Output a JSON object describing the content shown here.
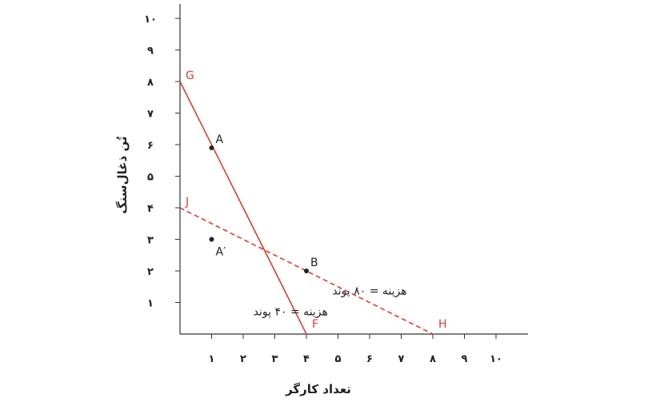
{
  "chart_data": {
    "type": "line",
    "xlabel": "تعداد کارگر",
    "ylabel": "تُن ذغال‌سنگ",
    "xlim": [
      0,
      10.8
    ],
    "ylim": [
      0,
      10.5
    ],
    "x_ticks": [
      1,
      2,
      3,
      4,
      5,
      6,
      7,
      8,
      9,
      10
    ],
    "x_tick_labels": [
      "۱",
      "۲",
      "۳",
      "۴",
      "۵",
      "۶",
      "۷",
      "۸",
      "۹",
      "۱۰"
    ],
    "y_ticks": [
      1,
      2,
      3,
      4,
      5,
      6,
      7,
      8,
      9,
      10
    ],
    "y_tick_labels": [
      "۱",
      "۲",
      "۳",
      "۴",
      "۵",
      "۶",
      "۷",
      "۸",
      "۹",
      "۱۰"
    ],
    "grid": false,
    "series": [
      {
        "style": "solid",
        "color": "#e03c31",
        "points": [
          [
            0,
            8
          ],
          [
            4,
            0
          ]
        ],
        "start_label": "G",
        "end_label": "F"
      },
      {
        "style": "dashed",
        "color": "#e03c31",
        "points": [
          [
            0,
            4
          ],
          [
            8,
            0
          ]
        ],
        "start_label": "J",
        "end_label": "H"
      }
    ],
    "points": [
      {
        "label": "A",
        "x": 1,
        "y": 5.9
      },
      {
        "label": "A′",
        "x": 1,
        "y": 3
      },
      {
        "label": "B",
        "x": 4,
        "y": 2
      }
    ],
    "annotations": [
      {
        "text": "هزینه = ۸۰ پوند",
        "x": 6.0,
        "y": 1.25
      },
      {
        "text": "هزینه = ۴۰ پوند",
        "x": 3.5,
        "y": 0.6
      }
    ]
  }
}
